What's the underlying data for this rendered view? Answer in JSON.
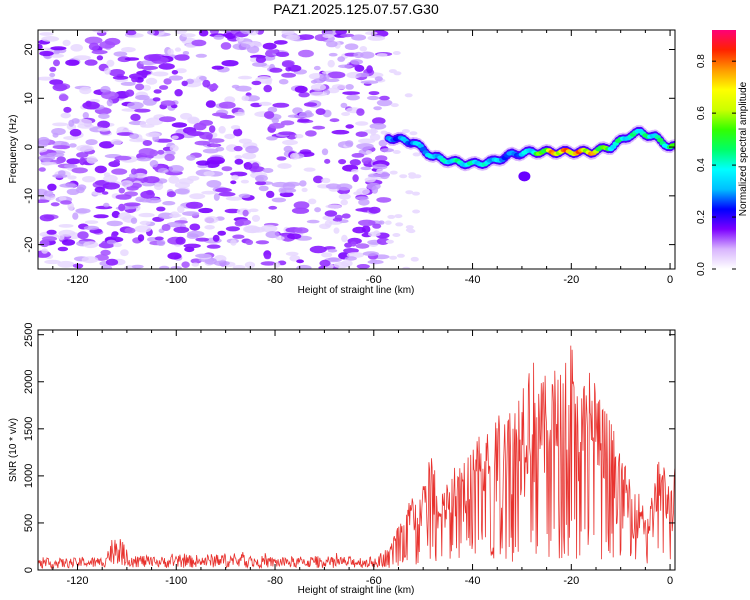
{
  "title": "PAZ1.2025.125.07.57.G30",
  "chart_data": [
    {
      "type": "heatmap",
      "xlabel": "Height of straight line (km)",
      "ylabel": "Frequency (Hz)",
      "xlim": [
        -128,
        1
      ],
      "ylim": [
        -25,
        24
      ],
      "xticks": [
        -120,
        -100,
        -80,
        -60,
        -40,
        -20,
        0
      ],
      "yticks": [
        -20,
        -10,
        0,
        10,
        20
      ],
      "colorbar": {
        "label": "Normalized spectral amplitude",
        "range": [
          0,
          0.92
        ],
        "ticks": [
          "0.0",
          "0.2",
          "0.4",
          "0.6",
          "0.8"
        ],
        "colors": [
          "#ffffff",
          "#d8b4fe",
          "#7c00ff",
          "#0000ff",
          "#00bfff",
          "#00ffff",
          "#00ff66",
          "#33ff00",
          "#ccff00",
          "#ffff00",
          "#ff9900",
          "#ff2200",
          "#ff0077"
        ]
      },
      "noise_region_x": [
        -128,
        -57
      ],
      "trace": {
        "x": [
          -57,
          -52,
          -48,
          -44,
          -40,
          -36,
          -32,
          -28,
          -24,
          -20,
          -16,
          -12,
          -8,
          -6,
          -3,
          0,
          1
        ],
        "y": [
          2,
          1,
          -2,
          -3,
          -3.5,
          -3,
          -1.5,
          -1,
          -1,
          -1,
          -1,
          0,
          2.5,
          3,
          2,
          0,
          0
        ],
        "amplitude": [
          0.3,
          0.35,
          0.4,
          0.45,
          0.45,
          0.4,
          0.3,
          0.45,
          0.8,
          0.85,
          0.8,
          0.5,
          0.45,
          0.5,
          0.45,
          0.55,
          0.55
        ]
      }
    },
    {
      "type": "line",
      "xlabel": "Height of straight line (km)",
      "ylabel": "SNR (10 * v/v)",
      "xlim": [
        -128,
        1
      ],
      "ylim": [
        0,
        2550
      ],
      "xticks": [
        -120,
        -100,
        -80,
        -60,
        -40,
        -20,
        0
      ],
      "yticks": [
        0,
        500,
        1000,
        1500,
        2000,
        2500
      ],
      "color": "#e8322e",
      "series": [
        {
          "name": "SNR",
          "x": [
            -128,
            -120,
            -115,
            -112,
            -110,
            -105,
            -100,
            -90,
            -80,
            -70,
            -60,
            -57,
            -54,
            -52,
            -50,
            -48,
            -47,
            -44,
            -42,
            -40,
            -38,
            -36,
            -34,
            -32,
            -30,
            -28,
            -26,
            -24,
            -22,
            -20,
            -18,
            -16,
            -14,
            -12,
            -10,
            -8,
            -6,
            -4,
            -2,
            0,
            1
          ],
          "y": [
            120,
            130,
            140,
            450,
            200,
            140,
            150,
            180,
            140,
            150,
            140,
            250,
            600,
            850,
            900,
            1450,
            700,
            1100,
            1200,
            1500,
            1700,
            1400,
            1900,
            1700,
            2100,
            2300,
            2000,
            2200,
            2100,
            2500,
            1900,
            2300,
            1800,
            1650,
            1200,
            1000,
            800,
            700,
            1300,
            900,
            1100
          ]
        }
      ]
    }
  ]
}
